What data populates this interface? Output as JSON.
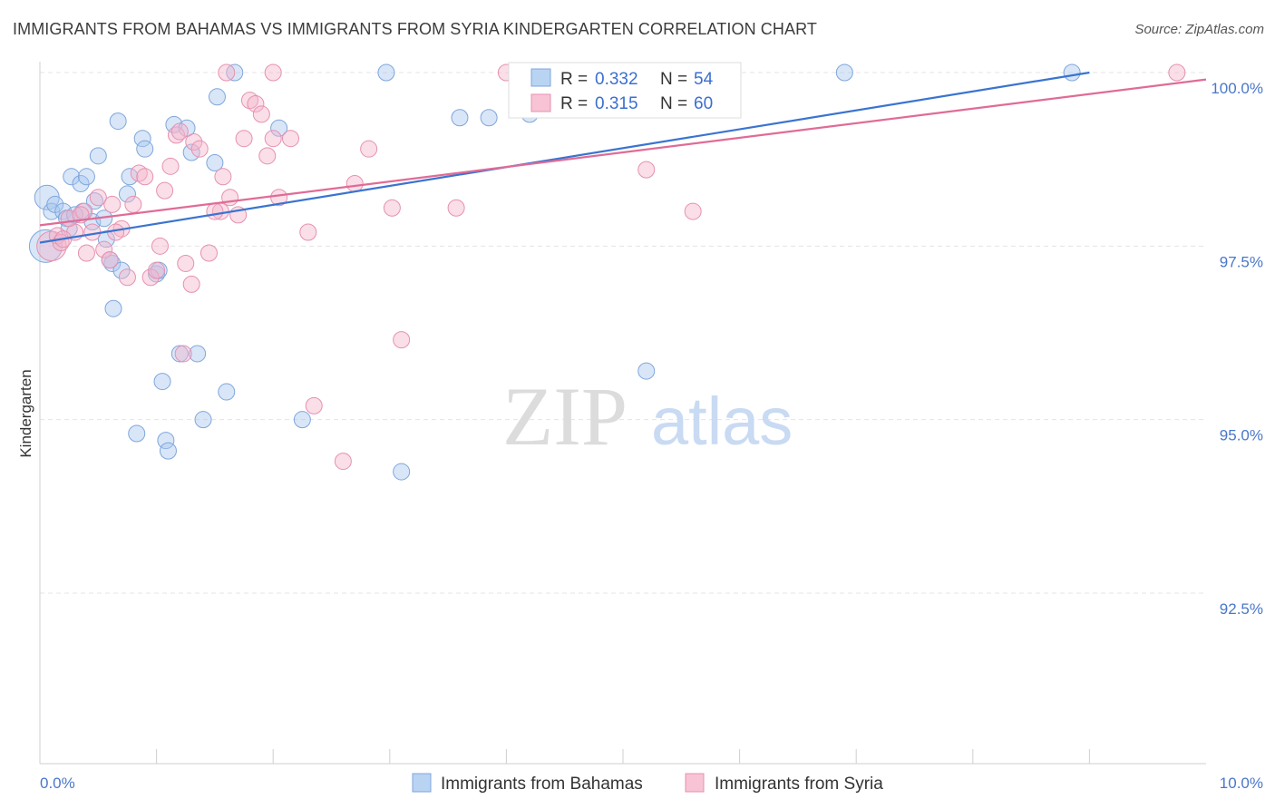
{
  "header": {
    "title": "IMMIGRANTS FROM BAHAMAS VS IMMIGRANTS FROM SYRIA KINDERGARTEN CORRELATION CHART",
    "source": "Source: ZipAtlas.com"
  },
  "watermark": {
    "zip": "ZIP",
    "atlas": "atlas"
  },
  "legend_box": {
    "r_label": "R =",
    "n_label": "N =",
    "rows": [
      {
        "r": "0.332",
        "n": "54"
      },
      {
        "r": "0.315",
        "n": "60"
      }
    ]
  },
  "chart_data": {
    "type": "scatter",
    "title": "IMMIGRANTS FROM BAHAMAS VS IMMIGRANTS FROM SYRIA KINDERGARTEN CORRELATION CHART",
    "xlabel": "",
    "ylabel": "Kindergarten",
    "xlim": [
      0,
      10
    ],
    "ylim": [
      90.0,
      100.4
    ],
    "x_tick_labels": [
      "0.0%",
      "10.0%"
    ],
    "y_ticks": [
      {
        "value": 100.0,
        "label": "100.0%"
      },
      {
        "value": 97.5,
        "label": "97.5%"
      },
      {
        "value": 95.0,
        "label": "95.0%"
      },
      {
        "value": 92.5,
        "label": "92.5%"
      }
    ],
    "grid": true,
    "legend_position": "bottom",
    "series": [
      {
        "name": "Immigrants from Bahamas",
        "color": "#a9c8f0",
        "line_color": "#3a74d0",
        "trend": {
          "x0": 0.0,
          "y0": 97.55,
          "x1": 9.0,
          "y1": 100.0
        },
        "points": [
          {
            "x": 0.05,
            "y": 97.5,
            "s": 2
          },
          {
            "x": 0.06,
            "y": 98.2,
            "s": 1.5
          },
          {
            "x": 0.1,
            "y": 98.0
          },
          {
            "x": 0.13,
            "y": 98.1
          },
          {
            "x": 0.2,
            "y": 98.0
          },
          {
            "x": 0.23,
            "y": 97.9
          },
          {
            "x": 0.25,
            "y": 97.75
          },
          {
            "x": 0.27,
            "y": 98.5
          },
          {
            "x": 0.35,
            "y": 98.4
          },
          {
            "x": 0.37,
            "y": 98.0
          },
          {
            "x": 0.4,
            "y": 98.5
          },
          {
            "x": 0.45,
            "y": 97.85
          },
          {
            "x": 0.47,
            "y": 98.15
          },
          {
            "x": 0.5,
            "y": 98.8
          },
          {
            "x": 0.55,
            "y": 97.9
          },
          {
            "x": 0.57,
            "y": 97.6
          },
          {
            "x": 0.62,
            "y": 97.25
          },
          {
            "x": 0.63,
            "y": 96.6
          },
          {
            "x": 0.67,
            "y": 99.3
          },
          {
            "x": 0.7,
            "y": 97.15
          },
          {
            "x": 0.75,
            "y": 98.25
          },
          {
            "x": 0.77,
            "y": 98.5
          },
          {
            "x": 0.83,
            "y": 94.8
          },
          {
            "x": 0.88,
            "y": 99.05
          },
          {
            "x": 0.9,
            "y": 98.9
          },
          {
            "x": 1.0,
            "y": 97.1
          },
          {
            "x": 1.05,
            "y": 95.55
          },
          {
            "x": 1.08,
            "y": 94.7
          },
          {
            "x": 1.1,
            "y": 94.55
          },
          {
            "x": 1.15,
            "y": 99.25
          },
          {
            "x": 1.2,
            "y": 95.95
          },
          {
            "x": 1.26,
            "y": 99.2
          },
          {
            "x": 1.3,
            "y": 98.85
          },
          {
            "x": 1.35,
            "y": 95.95
          },
          {
            "x": 1.4,
            "y": 95.0
          },
          {
            "x": 1.5,
            "y": 98.7
          },
          {
            "x": 1.52,
            "y": 99.65
          },
          {
            "x": 1.6,
            "y": 95.4
          },
          {
            "x": 1.67,
            "y": 100.0
          },
          {
            "x": 2.05,
            "y": 99.2
          },
          {
            "x": 2.25,
            "y": 95.0
          },
          {
            "x": 2.97,
            "y": 100.0
          },
          {
            "x": 3.1,
            "y": 94.25
          },
          {
            "x": 3.6,
            "y": 99.35
          },
          {
            "x": 3.85,
            "y": 99.35
          },
          {
            "x": 4.2,
            "y": 99.4
          },
          {
            "x": 5.15,
            "y": 100.0
          },
          {
            "x": 5.2,
            "y": 95.7
          },
          {
            "x": 5.9,
            "y": 100.0
          },
          {
            "x": 6.9,
            "y": 100.0
          },
          {
            "x": 8.85,
            "y": 100.0
          },
          {
            "x": 0.6,
            "y": 97.3
          },
          {
            "x": 1.02,
            "y": 97.15
          },
          {
            "x": 0.3,
            "y": 97.95
          }
        ]
      },
      {
        "name": "Immigrants from Syria",
        "color": "#f5b5cb",
        "line_color": "#e06b96",
        "trend": {
          "x0": 0.0,
          "y0": 97.8,
          "x1": 10.0,
          "y1": 99.9
        },
        "points": [
          {
            "x": 0.1,
            "y": 97.5,
            "s": 1.8
          },
          {
            "x": 0.15,
            "y": 97.65
          },
          {
            "x": 0.18,
            "y": 97.55
          },
          {
            "x": 0.3,
            "y": 97.7
          },
          {
            "x": 0.38,
            "y": 98.0
          },
          {
            "x": 0.4,
            "y": 97.4
          },
          {
            "x": 0.45,
            "y": 97.7
          },
          {
            "x": 0.5,
            "y": 98.2
          },
          {
            "x": 0.55,
            "y": 97.45
          },
          {
            "x": 0.6,
            "y": 97.3
          },
          {
            "x": 0.62,
            "y": 98.1
          },
          {
            "x": 0.7,
            "y": 97.75
          },
          {
            "x": 0.75,
            "y": 97.05
          },
          {
            "x": 0.8,
            "y": 98.1
          },
          {
            "x": 0.85,
            "y": 98.55
          },
          {
            "x": 0.9,
            "y": 98.5
          },
          {
            "x": 0.95,
            "y": 97.05
          },
          {
            "x": 1.0,
            "y": 97.15
          },
          {
            "x": 1.03,
            "y": 97.5
          },
          {
            "x": 1.07,
            "y": 98.3
          },
          {
            "x": 1.12,
            "y": 98.65
          },
          {
            "x": 1.17,
            "y": 99.1
          },
          {
            "x": 1.23,
            "y": 95.95
          },
          {
            "x": 1.25,
            "y": 97.25
          },
          {
            "x": 1.3,
            "y": 96.95
          },
          {
            "x": 1.32,
            "y": 99.0
          },
          {
            "x": 1.37,
            "y": 98.9
          },
          {
            "x": 1.45,
            "y": 97.4
          },
          {
            "x": 1.55,
            "y": 98.0
          },
          {
            "x": 1.57,
            "y": 98.5
          },
          {
            "x": 1.6,
            "y": 100.0
          },
          {
            "x": 1.63,
            "y": 98.2
          },
          {
            "x": 1.7,
            "y": 97.95
          },
          {
            "x": 1.75,
            "y": 99.05
          },
          {
            "x": 1.8,
            "y": 99.6
          },
          {
            "x": 1.85,
            "y": 99.55
          },
          {
            "x": 1.9,
            "y": 99.4
          },
          {
            "x": 1.95,
            "y": 98.8
          },
          {
            "x": 2.0,
            "y": 99.05
          },
          {
            "x": 2.05,
            "y": 98.2
          },
          {
            "x": 2.15,
            "y": 99.05
          },
          {
            "x": 2.3,
            "y": 97.7
          },
          {
            "x": 2.35,
            "y": 95.2
          },
          {
            "x": 2.6,
            "y": 94.4
          },
          {
            "x": 2.7,
            "y": 98.4
          },
          {
            "x": 2.82,
            "y": 98.9
          },
          {
            "x": 3.02,
            "y": 98.05
          },
          {
            "x": 3.1,
            "y": 96.15
          },
          {
            "x": 3.57,
            "y": 98.05
          },
          {
            "x": 4.0,
            "y": 100.0
          },
          {
            "x": 5.2,
            "y": 98.6
          },
          {
            "x": 5.6,
            "y": 98.0
          },
          {
            "x": 9.75,
            "y": 100.0
          },
          {
            "x": 2.0,
            "y": 100.0
          },
          {
            "x": 1.5,
            "y": 98.0
          },
          {
            "x": 0.25,
            "y": 97.9
          },
          {
            "x": 0.65,
            "y": 97.7
          },
          {
            "x": 1.2,
            "y": 99.15
          },
          {
            "x": 0.35,
            "y": 97.95
          },
          {
            "x": 0.2,
            "y": 97.6
          }
        ]
      }
    ]
  }
}
